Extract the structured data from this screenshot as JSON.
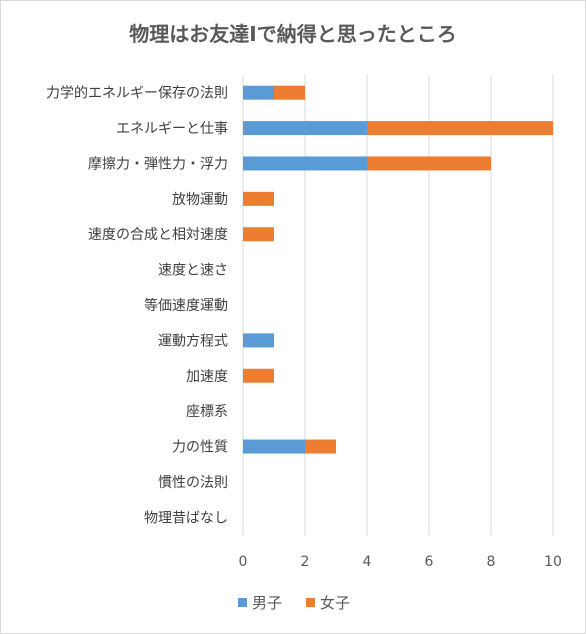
{
  "chart_data": {
    "type": "bar",
    "orientation": "horizontal",
    "stacked": true,
    "title": "物理はお友達Ⅰで納得と思ったところ",
    "xlabel": "",
    "ylabel": "",
    "xlim": [
      0,
      10
    ],
    "xticks": [
      0,
      2,
      4,
      6,
      8,
      10
    ],
    "grid": true,
    "legend_position": "bottom",
    "categories": [
      "力学的エネルギー保存の法則",
      "エネルギーと仕事",
      "摩擦力・弾性力・浮力",
      "放物運動",
      "速度の合成と相対速度",
      "速度と速さ",
      "等価速度運動",
      "運動方程式",
      "加速度",
      "座標系",
      "力の性質",
      "慣性の法則",
      "物理昔ばなし"
    ],
    "series": [
      {
        "name": "男子",
        "color": "#5b9bd5",
        "values": [
          1,
          4,
          4,
          0,
          0,
          0,
          0,
          1,
          0,
          0,
          2,
          0,
          0
        ]
      },
      {
        "name": "女子",
        "color": "#ed7d31",
        "values": [
          1,
          6,
          4,
          1,
          1,
          0,
          0,
          0,
          1,
          0,
          1,
          0,
          0
        ]
      }
    ]
  }
}
